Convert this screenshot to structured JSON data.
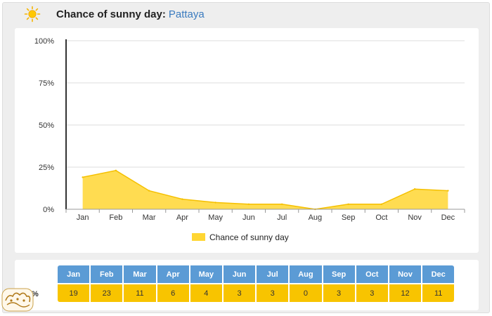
{
  "header": {
    "title": "Chance of sunny day:",
    "place": "Pattaya",
    "icon": "sun-icon"
  },
  "colors": {
    "area_fill": "#ffd633",
    "area_stroke": "#f5c000",
    "table_header": "#5b9bd5",
    "table_values": "#f8c400",
    "grid": "#dddddd",
    "axis": "#333333"
  },
  "chart_data": {
    "type": "area",
    "title": "Chance of sunny day",
    "categories": [
      "Jan",
      "Feb",
      "Mar",
      "Apr",
      "May",
      "Jun",
      "Jul",
      "Aug",
      "Sep",
      "Oct",
      "Nov",
      "Dec"
    ],
    "series": [
      {
        "name": "Chance of sunny day",
        "values": [
          19,
          23,
          11,
          6,
          4,
          3,
          3,
          0,
          3,
          3,
          12,
          11
        ]
      }
    ],
    "yticks": [
      "0%",
      "25%",
      "50%",
      "75%",
      "100%"
    ],
    "ytick_values": [
      0,
      25,
      50,
      75,
      100
    ],
    "ylim": [
      0,
      100
    ],
    "grid": true,
    "legend": "bottom-center"
  },
  "table": {
    "row_label": "%",
    "months": [
      "Jan",
      "Feb",
      "Mar",
      "Apr",
      "May",
      "Jun",
      "Jul",
      "Aug",
      "Sep",
      "Oct",
      "Nov",
      "Dec"
    ],
    "values": [
      "19",
      "23",
      "11",
      "6",
      "4",
      "3",
      "3",
      "0",
      "3",
      "3",
      "12",
      "11"
    ]
  }
}
